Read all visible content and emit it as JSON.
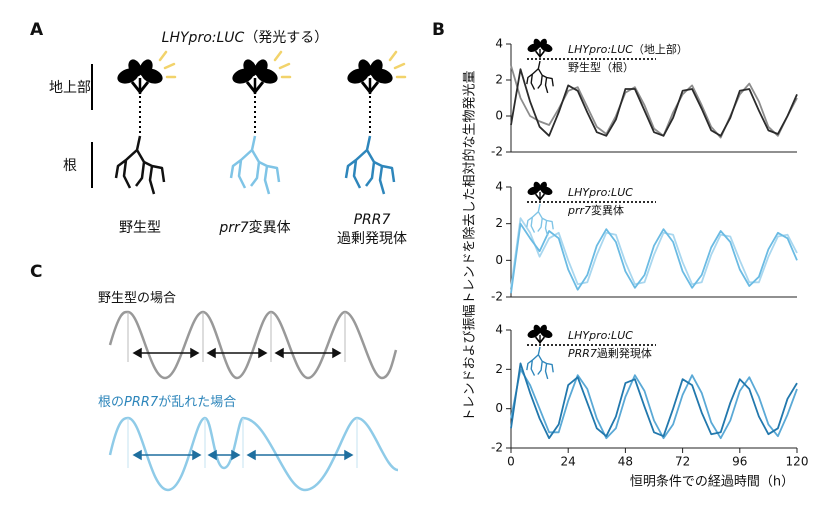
{
  "figure_a": {
    "label": "A",
    "title": [
      [
        {
          "text": "LHYpro:LUC",
          "italic": true
        },
        {
          "text": "（発光する）"
        }
      ]
    ],
    "rows": [
      "地上部",
      "根"
    ],
    "plants": [
      [
        [
          {
            "text": "野生型"
          }
        ]
      ],
      [
        [
          {
            "text": "prr7",
            "italic": true
          },
          {
            "text": "変異体"
          }
        ]
      ],
      [
        [
          {
            "text": "PRR7",
            "italic": true
          }
        ],
        [
          {
            "text": "過剰発現体"
          }
        ]
      ]
    ]
  },
  "figure_b": {
    "label": "B"
  },
  "figure_c": {
    "label": "C",
    "cases": [
      [
        [
          {
            "text": "野生型の場合"
          }
        ]
      ],
      [
        [
          {
            "text": "根の"
          },
          {
            "text": "PRR7",
            "italic": true
          },
          {
            "text": "が乱れた場合"
          }
        ]
      ]
    ]
  },
  "chart_data": [
    {
      "type": "line",
      "ylabel": "トレンドおよび振幅トレンドを除去した相対的な生物発光量",
      "annotations": [
        [
          {
            "text": "LHYpro:LUC",
            "italic": true
          },
          {
            "text": "（地上部）"
          }
        ],
        [
          {
            "text": "野生型（根）"
          }
        ]
      ],
      "xlim": [
        0,
        120
      ],
      "ylim": [
        -2,
        4
      ],
      "yticks": [
        -2,
        0,
        2,
        4
      ],
      "x": [
        0,
        4,
        8,
        12,
        16,
        20,
        24,
        28,
        32,
        36,
        40,
        44,
        48,
        52,
        56,
        60,
        64,
        68,
        72,
        76,
        80,
        84,
        88,
        92,
        96,
        100,
        104,
        108,
        112,
        116,
        120
      ],
      "series": [
        {
          "color": "#8c8c8c",
          "values": [
            2.8,
            1.0,
            0.0,
            -0.3,
            -0.5,
            0.4,
            1.4,
            1.6,
            0.5,
            -0.6,
            -1.0,
            0.0,
            1.3,
            1.6,
            0.6,
            -0.7,
            -1.1,
            0.2,
            1.2,
            1.7,
            0.6,
            -0.6,
            -1.2,
            0.0,
            1.2,
            1.8,
            0.8,
            -0.6,
            -1.1,
            0.0,
            1.0
          ]
        },
        {
          "color": "#2b2b2b",
          "values": [
            -0.5,
            2.6,
            0.8,
            -0.6,
            -1.1,
            0.2,
            1.7,
            1.4,
            0.2,
            -0.9,
            -1.1,
            -0.2,
            1.5,
            1.5,
            0.3,
            -0.9,
            -1.1,
            -0.1,
            1.4,
            1.5,
            0.4,
            -0.8,
            -1.1,
            -0.1,
            1.4,
            1.5,
            0.3,
            -0.8,
            -1.0,
            0.0,
            1.2
          ]
        }
      ]
    },
    {
      "type": "line",
      "annotations": [
        [
          {
            "text": "LHYpro:LUC",
            "italic": true
          }
        ],
        [
          {
            "text": "prr7",
            "italic": true
          },
          {
            "text": "変異体"
          }
        ]
      ],
      "xlim": [
        0,
        120
      ],
      "ylim": [
        -2,
        4
      ],
      "yticks": [
        -2,
        0,
        2,
        4
      ],
      "x": [
        0,
        4,
        8,
        12,
        16,
        20,
        24,
        28,
        32,
        36,
        40,
        44,
        48,
        52,
        56,
        60,
        64,
        68,
        72,
        76,
        80,
        84,
        88,
        92,
        96,
        100,
        104,
        108,
        112,
        116,
        120
      ],
      "series": [
        {
          "color": "#a9d7ef",
          "values": [
            -1.5,
            2.3,
            1.5,
            0.2,
            1.2,
            1.5,
            0.0,
            -1.3,
            -1.2,
            0.3,
            1.5,
            1.4,
            -0.1,
            -1.3,
            -1.2,
            0.3,
            1.5,
            1.4,
            -0.1,
            -1.3,
            -1.2,
            0.3,
            1.4,
            1.3,
            0.0,
            -1.2,
            -1.2,
            0.2,
            1.3,
            1.4,
            0.4
          ]
        },
        {
          "color": "#6bbbe3",
          "values": [
            -1.8,
            2.0,
            1.2,
            0.5,
            1.6,
            1.2,
            -0.5,
            -1.6,
            -0.8,
            0.8,
            1.7,
            1.0,
            -0.6,
            -1.5,
            -0.8,
            0.8,
            1.7,
            1.0,
            -0.6,
            -1.5,
            -0.8,
            0.7,
            1.6,
            1.0,
            -0.5,
            -1.4,
            -0.9,
            0.6,
            1.5,
            1.2,
            0.0
          ]
        }
      ]
    },
    {
      "type": "line",
      "xlabel": "恒明条件での経過時間（h）",
      "annotations": [
        [
          {
            "text": "LHYpro:LUC",
            "italic": true
          }
        ],
        [
          {
            "text": "PRR7",
            "italic": true
          },
          {
            "text": "過剰発現体"
          }
        ]
      ],
      "xlim": [
        0,
        120
      ],
      "ylim": [
        -2,
        4
      ],
      "yticks": [
        -2,
        0,
        2,
        4
      ],
      "xticks": [
        0,
        24,
        48,
        72,
        96,
        120
      ],
      "x": [
        0,
        4,
        8,
        12,
        16,
        20,
        24,
        28,
        32,
        36,
        40,
        44,
        48,
        52,
        56,
        60,
        64,
        68,
        72,
        76,
        80,
        84,
        88,
        92,
        96,
        100,
        104,
        108,
        112,
        116,
        120
      ],
      "series": [
        {
          "color": "#5aa9d6",
          "values": [
            -0.5,
            2.0,
            1.2,
            0.0,
            -1.2,
            -1.2,
            0.4,
            1.7,
            1.0,
            -0.5,
            -1.5,
            -1.0,
            0.6,
            1.7,
            0.9,
            -0.6,
            -1.5,
            -0.8,
            0.7,
            1.7,
            0.8,
            -0.7,
            -1.5,
            -0.6,
            0.9,
            1.6,
            0.6,
            -0.8,
            -1.4,
            -0.3,
            1.0
          ]
        },
        {
          "color": "#2278ad",
          "values": [
            -1.0,
            2.3,
            0.8,
            -0.5,
            -1.5,
            -0.8,
            1.2,
            1.6,
            0.3,
            -1.0,
            -1.4,
            -0.4,
            1.3,
            1.5,
            0.1,
            -1.2,
            -1.4,
            0.0,
            1.5,
            1.2,
            -0.2,
            -1.3,
            -1.2,
            0.3,
            1.5,
            1.0,
            -0.4,
            -1.3,
            -1.0,
            0.5,
            1.3
          ]
        }
      ]
    }
  ]
}
